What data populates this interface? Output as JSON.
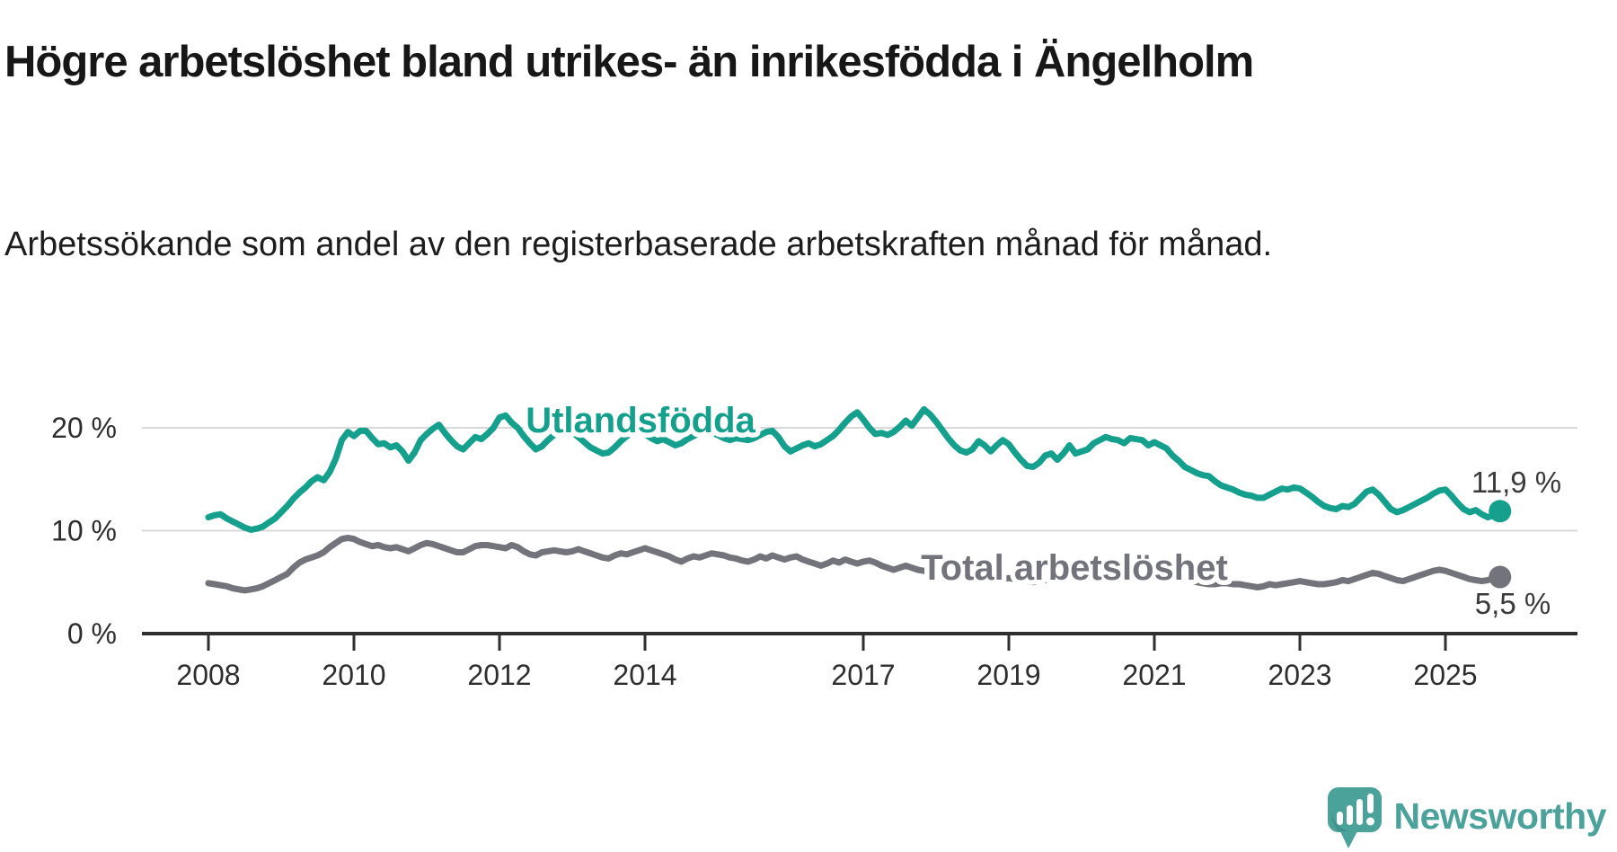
{
  "header": {
    "title": "Högre arbetslöshet bland utrikes- än inrikesfödda i Ängelholm",
    "subtitle": "Arbetssökande som andel av den registerbaserade arbetskraften månad för månad."
  },
  "branding": {
    "logo_text": "Newsworthy",
    "logo_icon": "speech-bubble-bar-chart-exclamation",
    "logo_color": "#4ba29b"
  },
  "chart_data": {
    "type": "line",
    "title": "Högre arbetslöshet bland utrikes- än inrikesfödda i Ängelholm",
    "subtitle": "Arbetssökande som andel av den registerbaserade arbetskraften månad för månad.",
    "x_unit": "month",
    "x_start": "2008-01",
    "x_end": "2025-10",
    "x_tick_years": [
      2008,
      2010,
      2012,
      2014,
      2017,
      2019,
      2021,
      2023,
      2025
    ],
    "x_tick_labels": [
      "2008",
      "2010",
      "2012",
      "2014",
      "2017",
      "2019",
      "2021",
      "2023",
      "2025"
    ],
    "y_ticks": [
      0,
      10,
      20
    ],
    "y_tick_labels": [
      "0 %",
      "10 %",
      "20 %"
    ],
    "ylim": [
      0,
      24
    ],
    "grid": "horizontal",
    "legend": "inline-labels-on-lines",
    "colors": {
      "utlandsfodda": "#14a08d",
      "total": "#73737b",
      "axis_text": "#2e2e2e",
      "grid_line": "#d9d9d9",
      "axis_line": "#2f2f2f",
      "annotation_text": "#3a3a3a"
    },
    "series": [
      {
        "name": "Utlandsfödda",
        "end_label": "11,9 %",
        "end_value": 11.9,
        "color": "#14a08d",
        "values": [
          11.3,
          11.5,
          11.6,
          11.2,
          10.9,
          10.6,
          10.3,
          10.1,
          10.2,
          10.4,
          10.8,
          11.2,
          11.8,
          12.4,
          13.1,
          13.7,
          14.2,
          14.8,
          15.2,
          14.9,
          15.7,
          17.0,
          18.8,
          19.6,
          19.2,
          19.7,
          19.7,
          19.0,
          18.4,
          18.5,
          18.1,
          18.3,
          17.7,
          16.8,
          17.6,
          18.8,
          19.4,
          19.9,
          20.3,
          19.5,
          18.8,
          18.2,
          17.9,
          18.5,
          19.1,
          18.9,
          19.4,
          20.0,
          21.0,
          21.2,
          20.5,
          20.0,
          19.2,
          18.5,
          17.9,
          18.2,
          18.8,
          19.3,
          19.7,
          19.9,
          19.6,
          19.1,
          18.6,
          18.1,
          17.8,
          17.5,
          17.6,
          18.1,
          18.7,
          19.2,
          19.6,
          19.8,
          19.4,
          19.0,
          18.7,
          18.9,
          18.6,
          18.3,
          18.5,
          18.9,
          19.2,
          19.5,
          19.7,
          19.5,
          19.3,
          19.0,
          18.8,
          19.0,
          18.9,
          18.8,
          19.0,
          19.3,
          19.6,
          19.7,
          19.1,
          18.2,
          17.7,
          18.0,
          18.3,
          18.5,
          18.2,
          18.4,
          18.8,
          19.2,
          19.8,
          20.5,
          21.1,
          21.5,
          20.8,
          20.0,
          19.4,
          19.5,
          19.3,
          19.6,
          20.1,
          20.7,
          20.2,
          21.0,
          21.8,
          21.3,
          20.6,
          19.8,
          19.0,
          18.3,
          17.8,
          17.6,
          17.9,
          18.7,
          18.3,
          17.7,
          18.3,
          18.8,
          18.4,
          17.6,
          16.9,
          16.3,
          16.2,
          16.6,
          17.3,
          17.5,
          16.9,
          17.5,
          18.3,
          17.5,
          17.7,
          17.9,
          18.5,
          18.8,
          19.1,
          18.9,
          18.8,
          18.5,
          19.0,
          18.9,
          18.8,
          18.3,
          18.6,
          18.3,
          18.0,
          17.3,
          16.8,
          16.2,
          15.9,
          15.6,
          15.4,
          15.3,
          14.8,
          14.4,
          14.2,
          14.0,
          13.7,
          13.5,
          13.4,
          13.2,
          13.2,
          13.5,
          13.8,
          14.1,
          14.0,
          14.2,
          14.1,
          13.7,
          13.3,
          12.8,
          12.4,
          12.2,
          12.1,
          12.4,
          12.3,
          12.6,
          13.2,
          13.8,
          14.0,
          13.5,
          12.8,
          12.1,
          11.8,
          12.0,
          12.3,
          12.6,
          12.9,
          13.2,
          13.6,
          13.9,
          14.0,
          13.4,
          12.7,
          12.1,
          11.8,
          12.0,
          11.6,
          11.3,
          11.5,
          11.9
        ]
      },
      {
        "name": "Total arbetslöshet",
        "end_label": "5,5 %",
        "end_value": 5.5,
        "color": "#73737b",
        "values": [
          4.9,
          4.8,
          4.7,
          4.6,
          4.4,
          4.3,
          4.2,
          4.3,
          4.4,
          4.6,
          4.9,
          5.2,
          5.5,
          5.8,
          6.4,
          6.9,
          7.2,
          7.4,
          7.6,
          7.9,
          8.4,
          8.8,
          9.2,
          9.3,
          9.2,
          8.9,
          8.7,
          8.5,
          8.6,
          8.4,
          8.3,
          8.4,
          8.2,
          8.0,
          8.3,
          8.6,
          8.8,
          8.7,
          8.5,
          8.3,
          8.1,
          7.9,
          7.9,
          8.2,
          8.5,
          8.6,
          8.6,
          8.5,
          8.4,
          8.3,
          8.6,
          8.4,
          8.0,
          7.7,
          7.6,
          7.9,
          8.0,
          8.1,
          8.0,
          7.9,
          8.0,
          8.2,
          8.0,
          7.8,
          7.6,
          7.4,
          7.3,
          7.6,
          7.8,
          7.7,
          7.9,
          8.1,
          8.3,
          8.1,
          7.9,
          7.7,
          7.5,
          7.2,
          7.0,
          7.3,
          7.5,
          7.4,
          7.6,
          7.8,
          7.7,
          7.6,
          7.4,
          7.3,
          7.1,
          7.0,
          7.2,
          7.5,
          7.3,
          7.6,
          7.4,
          7.2,
          7.4,
          7.5,
          7.2,
          7.0,
          6.8,
          6.6,
          6.8,
          7.1,
          6.9,
          7.2,
          7.0,
          6.8,
          7.0,
          7.1,
          6.9,
          6.6,
          6.4,
          6.2,
          6.4,
          6.6,
          6.4,
          6.2,
          6.1,
          6.2,
          6.1,
          6.0,
          5.8,
          5.6,
          5.4,
          5.3,
          5.4,
          5.6,
          5.5,
          5.3,
          5.2,
          5.3,
          5.4,
          5.3,
          5.2,
          5.1,
          5.0,
          5.1,
          5.2,
          5.3,
          5.2,
          5.3,
          5.4,
          5.5,
          5.7,
          5.9,
          6.3,
          6.7,
          6.9,
          7.0,
          6.9,
          6.8,
          6.6,
          6.4,
          6.2,
          6.1,
          6.0,
          5.9,
          5.7,
          5.5,
          5.3,
          5.2,
          5.1,
          5.0,
          4.9,
          4.8,
          4.8,
          4.9,
          4.9,
          4.8,
          4.8,
          4.7,
          4.6,
          4.5,
          4.6,
          4.8,
          4.7,
          4.8,
          4.9,
          5.0,
          5.1,
          5.0,
          4.9,
          4.8,
          4.8,
          4.9,
          5.0,
          5.2,
          5.1,
          5.3,
          5.5,
          5.7,
          5.9,
          5.8,
          5.6,
          5.4,
          5.2,
          5.1,
          5.3,
          5.5,
          5.7,
          5.9,
          6.1,
          6.2,
          6.1,
          5.9,
          5.7,
          5.5,
          5.3,
          5.2,
          5.1,
          5.2,
          5.4,
          5.5
        ]
      }
    ]
  }
}
